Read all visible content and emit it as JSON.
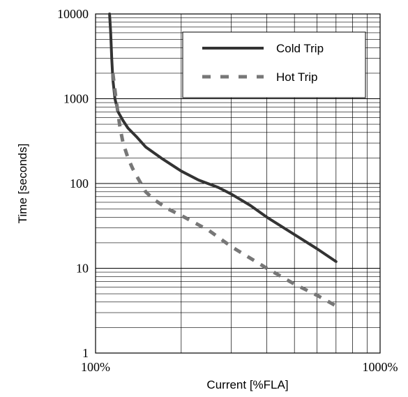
{
  "chart_data": {
    "type": "line",
    "title": "",
    "xlabel": "Current [%FLA]",
    "ylabel": "Time [seconds]",
    "x_scale": "log",
    "y_scale": "log",
    "xlim": [
      100,
      1000
    ],
    "ylim": [
      1,
      10000
    ],
    "x_tick_labels": [
      {
        "value": 100,
        "label": "100%"
      },
      {
        "value": 1000,
        "label": "1000%"
      }
    ],
    "y_tick_labels": [
      {
        "value": 1,
        "label": "1"
      },
      {
        "value": 10,
        "label": "10"
      },
      {
        "value": 100,
        "label": "100"
      },
      {
        "value": 1000,
        "label": "1000"
      },
      {
        "value": 10000,
        "label": "10000"
      }
    ],
    "grid": true,
    "legend_position": "top-right",
    "series": [
      {
        "name": "Cold Trip",
        "style": "solid",
        "color": "#333333",
        "x": [
          112,
          113,
          114,
          115,
          117,
          120,
          125,
          130,
          140,
          150,
          170,
          200,
          230,
          270,
          300,
          350,
          400,
          500,
          600,
          700
        ],
        "y": [
          10000,
          6000,
          3000,
          1700,
          1000,
          700,
          550,
          450,
          350,
          270,
          200,
          140,
          110,
          90,
          75,
          55,
          40,
          25,
          17,
          12
        ]
      },
      {
        "name": "Hot Trip",
        "style": "dashed",
        "color": "#777777",
        "x": [
          115,
          118,
          122,
          125,
          130,
          135,
          140,
          150,
          160,
          180,
          200,
          250,
          300,
          400,
          500,
          600,
          700
        ],
        "y": [
          2000,
          1000,
          450,
          300,
          200,
          150,
          120,
          80,
          65,
          50,
          42,
          28,
          18,
          10,
          6.5,
          4.8,
          3.6
        ]
      }
    ]
  }
}
